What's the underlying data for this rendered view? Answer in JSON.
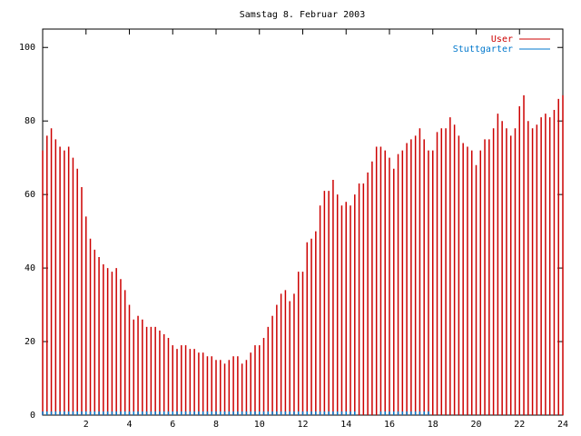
{
  "chart_data": {
    "type": "impulses",
    "title": "Samstag 8. Februar 2003",
    "x": [
      0,
      0.2,
      0.4,
      0.6,
      0.8,
      1,
      1.2,
      1.4,
      1.6,
      1.8,
      2,
      2.2,
      2.4,
      2.6,
      2.8,
      3,
      3.2,
      3.4,
      3.6,
      3.8,
      4,
      4.2,
      4.4,
      4.6,
      4.8,
      5,
      5.2,
      5.4,
      5.6,
      5.8,
      6,
      6.2,
      6.4,
      6.6,
      6.8,
      7,
      7.2,
      7.4,
      7.6,
      7.8,
      8,
      8.2,
      8.4,
      8.6,
      8.8,
      9,
      9.2,
      9.4,
      9.6,
      9.8,
      10,
      10.2,
      10.4,
      10.6,
      10.8,
      11,
      11.2,
      11.4,
      11.6,
      11.8,
      12,
      12.2,
      12.4,
      12.6,
      12.8,
      13,
      13.2,
      13.4,
      13.6,
      13.8,
      14,
      14.2,
      14.4,
      14.6,
      14.8,
      15,
      15.2,
      15.4,
      15.6,
      15.8,
      16,
      16.2,
      16.4,
      16.6,
      16.8,
      17,
      17.2,
      17.4,
      17.6,
      17.8,
      18,
      18.2,
      18.4,
      18.6,
      18.8,
      19,
      19.2,
      19.4,
      19.6,
      19.8,
      20,
      20.2,
      20.4,
      20.6,
      20.8,
      21,
      21.2,
      21.4,
      21.6,
      21.8,
      22,
      22.2,
      22.4,
      22.6,
      22.8,
      23,
      23.2,
      23.4,
      23.6,
      23.8,
      24
    ],
    "series": [
      {
        "name": "User",
        "color": "#cc0000",
        "values": [
          72,
          76,
          78,
          75,
          73,
          72,
          73,
          70,
          67,
          62,
          54,
          48,
          45,
          43,
          41,
          40,
          39,
          40,
          37,
          34,
          30,
          26,
          27,
          26,
          24,
          24,
          24,
          23,
          22,
          21,
          19,
          18,
          19,
          19,
          18,
          18,
          17,
          17,
          16,
          16,
          15,
          15,
          14,
          15,
          16,
          16,
          14,
          15,
          17,
          19,
          19,
          21,
          24,
          27,
          30,
          33,
          34,
          31,
          33,
          39,
          39,
          47,
          48,
          50,
          57,
          61,
          61,
          64,
          60,
          57,
          58,
          57,
          60,
          63,
          63,
          66,
          69,
          73,
          73,
          72,
          70,
          67,
          71,
          72,
          74,
          75,
          76,
          78,
          75,
          72,
          72,
          77,
          78,
          78,
          81,
          79,
          76,
          74,
          73,
          72,
          68,
          72,
          75,
          75,
          78,
          82,
          80,
          78,
          76,
          78,
          84,
          87,
          80,
          78,
          79,
          81,
          82,
          81,
          83,
          86,
          87
        ]
      },
      {
        "name": "Stuttgarter",
        "color": "#0077cc",
        "values": [
          1,
          1,
          1,
          1,
          1,
          1,
          1,
          1,
          1,
          1,
          1,
          1,
          1,
          1,
          1,
          1,
          1,
          1,
          1,
          1,
          1,
          1,
          1,
          1,
          1,
          1,
          1,
          1,
          1,
          1,
          1,
          1,
          1,
          1,
          1,
          1,
          1,
          1,
          1,
          1,
          1,
          1,
          1,
          1,
          1,
          1,
          1,
          1,
          1,
          1,
          1,
          1,
          1,
          1,
          1,
          1,
          1,
          1,
          1,
          1,
          1,
          1,
          1,
          1,
          1,
          1,
          1,
          1,
          1,
          1,
          1,
          1,
          1,
          0,
          0,
          0,
          0,
          0,
          1,
          1,
          1,
          1,
          1,
          1,
          1,
          1,
          1,
          1,
          1,
          1,
          0,
          0,
          0,
          0,
          0,
          0,
          0,
          0,
          0,
          0,
          0,
          0,
          0,
          0,
          0,
          0,
          0,
          0,
          0,
          0,
          0,
          0,
          0,
          0,
          0,
          0,
          0,
          0,
          0,
          0,
          0
        ]
      }
    ],
    "xlim": [
      0,
      24
    ],
    "xticks": [
      2,
      4,
      6,
      8,
      10,
      12,
      14,
      16,
      18,
      20,
      22,
      24
    ],
    "ylim": [
      0,
      105
    ],
    "yticks": [
      0,
      20,
      40,
      60,
      80,
      100
    ],
    "legend": "upper right"
  }
}
